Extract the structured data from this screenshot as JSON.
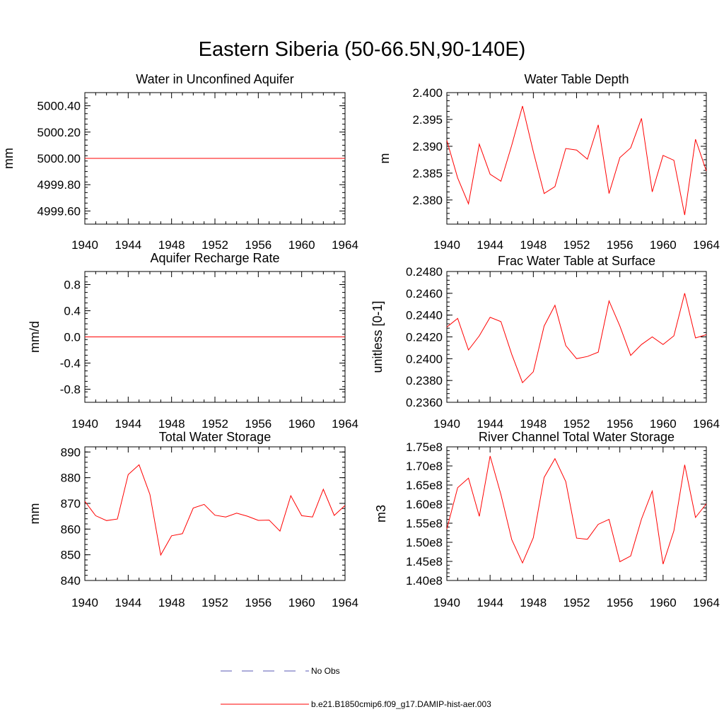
{
  "title": "Eastern Siberia (50-66.5N,90-140E)",
  "legend": [
    {
      "label": "No Obs",
      "color": "#5a5ab4",
      "dash": true
    },
    {
      "label": "b.e21.B1850cmip6.f09_g17.DAMIP-hist-aer.003",
      "color": "#ff0000",
      "dash": false
    }
  ],
  "chart_data": [
    {
      "type": "line",
      "title": "Water in Unconfined Aquifer",
      "ylabel": "mm",
      "xlim": [
        1940,
        1964
      ],
      "ylim": [
        4999.5,
        5000.5
      ],
      "xticks": [
        "1940",
        "1944",
        "1948",
        "1952",
        "1956",
        "1960",
        "1964"
      ],
      "yticks": [
        {
          "v": 5000.4,
          "label": "5000.40"
        },
        {
          "v": 5000.2,
          "label": "5000.20"
        },
        {
          "v": 5000.0,
          "label": "5000.00"
        },
        {
          "v": 4999.8,
          "label": "4999.80"
        },
        {
          "v": 4999.6,
          "label": "4999.60"
        }
      ],
      "series_color": "#ff0000",
      "x": [
        1940,
        1964
      ],
      "y": [
        5000.0,
        5000.0
      ]
    },
    {
      "type": "line",
      "title": "Water Table Depth",
      "ylabel": "m",
      "xlim": [
        1940,
        1964
      ],
      "ylim": [
        2.3755,
        2.4
      ],
      "xticks": [
        "1940",
        "1944",
        "1948",
        "1952",
        "1956",
        "1960",
        "1964"
      ],
      "yticks": [
        {
          "v": 2.4,
          "label": "2.400"
        },
        {
          "v": 2.395,
          "label": "2.395"
        },
        {
          "v": 2.39,
          "label": "2.390"
        },
        {
          "v": 2.385,
          "label": "2.385"
        },
        {
          "v": 2.38,
          "label": "2.380"
        }
      ],
      "series_color": "#ff0000",
      "x": [
        1940,
        1941,
        1942,
        1943,
        1944,
        1945,
        1946,
        1947,
        1948,
        1949,
        1950,
        1951,
        1952,
        1953,
        1954,
        1955,
        1956,
        1957,
        1958,
        1959,
        1960,
        1961,
        1962,
        1963,
        1964
      ],
      "y": [
        2.3911,
        2.3841,
        2.3793,
        2.3904,
        2.3848,
        2.3835,
        2.3902,
        2.3975,
        2.389,
        2.3812,
        2.3825,
        2.3896,
        2.3893,
        2.3876,
        2.394,
        2.3812,
        2.3879,
        2.3897,
        2.3952,
        2.3815,
        2.3883,
        2.3874,
        2.3772,
        2.3913,
        2.3854
      ]
    },
    {
      "type": "line",
      "title": "Aquifer Recharge Rate",
      "ylabel": "mm/d",
      "xlim": [
        1940,
        1964
      ],
      "ylim": [
        -1.0,
        1.0
      ],
      "xticks": [
        "1940",
        "1944",
        "1948",
        "1952",
        "1956",
        "1960",
        "1964"
      ],
      "yticks": [
        {
          "v": 0.8,
          "label": "0.8"
        },
        {
          "v": 0.4,
          "label": "0.4"
        },
        {
          "v": 0.0,
          "label": "0.0"
        },
        {
          "v": -0.4,
          "label": "-0.4"
        },
        {
          "v": -0.8,
          "label": "-0.8"
        }
      ],
      "series_color": "#ff0000",
      "x": [
        1940,
        1964
      ],
      "y": [
        0.0,
        0.0
      ]
    },
    {
      "type": "line",
      "title": "Frac Water Table at Surface",
      "ylabel": "unitless [0-1]",
      "xlim": [
        1940,
        1964
      ],
      "ylim": [
        0.236,
        0.248
      ],
      "xticks": [
        "1940",
        "1944",
        "1948",
        "1952",
        "1956",
        "1960",
        "1964"
      ],
      "yticks": [
        {
          "v": 0.248,
          "label": "0.2480"
        },
        {
          "v": 0.246,
          "label": "0.2460"
        },
        {
          "v": 0.244,
          "label": "0.2440"
        },
        {
          "v": 0.242,
          "label": "0.2420"
        },
        {
          "v": 0.24,
          "label": "0.2400"
        },
        {
          "v": 0.238,
          "label": "0.2380"
        },
        {
          "v": 0.236,
          "label": "0.2360"
        }
      ],
      "series_color": "#ff0000",
      "x": [
        1940,
        1941,
        1942,
        1943,
        1944,
        1945,
        1946,
        1947,
        1948,
        1949,
        1950,
        1951,
        1952,
        1953,
        1954,
        1955,
        1956,
        1957,
        1958,
        1959,
        1960,
        1961,
        1962,
        1963,
        1964
      ],
      "y": [
        0.2429,
        0.2437,
        0.2408,
        0.2421,
        0.2438,
        0.2434,
        0.2404,
        0.2378,
        0.2388,
        0.243,
        0.2449,
        0.2412,
        0.24,
        0.2402,
        0.2406,
        0.2453,
        0.243,
        0.2403,
        0.2413,
        0.242,
        0.2413,
        0.2421,
        0.246,
        0.2419,
        0.2422
      ]
    },
    {
      "type": "line",
      "title": "Total Water Storage",
      "ylabel": "mm",
      "xlim": [
        1940,
        1964
      ],
      "ylim": [
        840,
        892
      ],
      "xticks": [
        "1940",
        "1944",
        "1948",
        "1952",
        "1956",
        "1960",
        "1964"
      ],
      "yticks": [
        {
          "v": 890,
          "label": "890"
        },
        {
          "v": 880,
          "label": "880"
        },
        {
          "v": 870,
          "label": "870"
        },
        {
          "v": 860,
          "label": "860"
        },
        {
          "v": 850,
          "label": "850"
        },
        {
          "v": 840,
          "label": "840"
        }
      ],
      "series_color": "#ff0000",
      "x": [
        1940,
        1941,
        1942,
        1943,
        1944,
        1945,
        1946,
        1947,
        1948,
        1949,
        1950,
        1951,
        1952,
        1953,
        1954,
        1955,
        1956,
        1957,
        1958,
        1959,
        1960,
        1961,
        1962,
        1963,
        1964
      ],
      "y": [
        870.8,
        865.2,
        863.3,
        863.9,
        881.2,
        885.0,
        873.5,
        849.9,
        857.4,
        858.2,
        868.2,
        869.6,
        865.4,
        864.7,
        866.2,
        865.0,
        863.4,
        863.5,
        859.2,
        873.0,
        865.2,
        864.7,
        875.5,
        865.3,
        869.2
      ]
    },
    {
      "type": "line",
      "title": "River Channel Total Water Storage",
      "ylabel": "m3",
      "xlim": [
        1940,
        1964
      ],
      "ylim": [
        140000000.0,
        175000000.0
      ],
      "xticks": [
        "1940",
        "1944",
        "1948",
        "1952",
        "1956",
        "1960",
        "1964"
      ],
      "yticks": [
        {
          "v": 175000000.0,
          "label": "1.75e8"
        },
        {
          "v": 170000000.0,
          "label": "1.70e8"
        },
        {
          "v": 165000000.0,
          "label": "1.65e8"
        },
        {
          "v": 160000000.0,
          "label": "1.60e8"
        },
        {
          "v": 155000000.0,
          "label": "1.55e8"
        },
        {
          "v": 150000000.0,
          "label": "1.50e8"
        },
        {
          "v": 145000000.0,
          "label": "1.45e8"
        },
        {
          "v": 140000000.0,
          "label": "1.40e8"
        }
      ],
      "series_color": "#ff0000",
      "x": [
        1940,
        1941,
        1942,
        1943,
        1944,
        1945,
        1946,
        1947,
        1948,
        1949,
        1950,
        1951,
        1952,
        1953,
        1954,
        1955,
        1956,
        1957,
        1958,
        1959,
        1960,
        1961,
        1962,
        1963,
        1964
      ],
      "y": [
        153500000.0,
        164300000.0,
        166800000.0,
        156800000.0,
        172600000.0,
        162500000.0,
        150700000.0,
        144600000.0,
        151200000.0,
        167000000.0,
        171900000.0,
        165900000.0,
        151100000.0,
        150800000.0,
        154700000.0,
        156000000.0,
        144900000.0,
        146400000.0,
        156100000.0,
        163400000.0,
        144300000.0,
        153000000.0,
        170300000.0,
        156500000.0,
        160100000.0
      ]
    }
  ]
}
